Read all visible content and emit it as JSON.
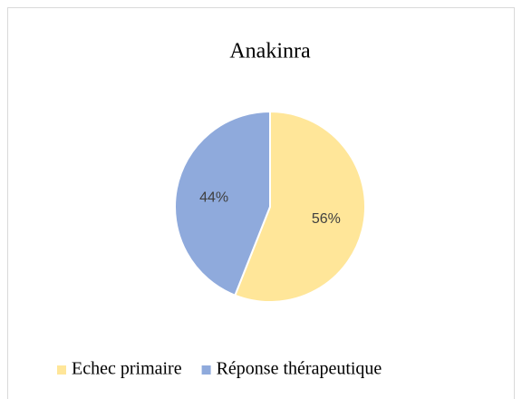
{
  "chart_data": {
    "type": "pie",
    "title": "Anakinra",
    "categories": [
      "Echec primaire",
      "Réponse thérapeutique"
    ],
    "values": [
      56,
      44
    ],
    "value_labels": [
      "56%",
      "44%"
    ],
    "colors": [
      "#FFE699",
      "#8FAADC"
    ],
    "legend": "bottom"
  }
}
